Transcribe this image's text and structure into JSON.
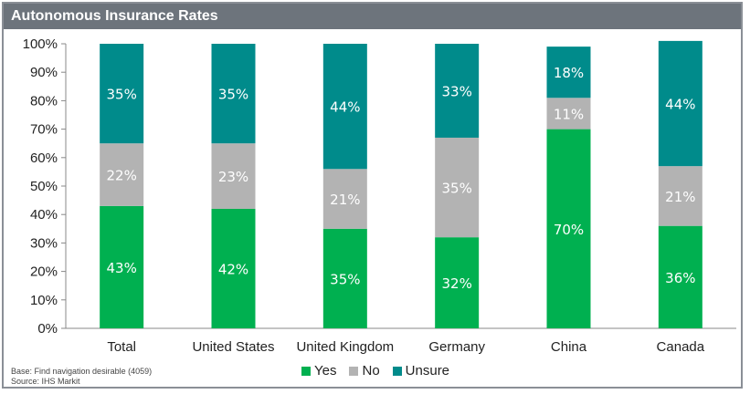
{
  "title": "Autonomous Insurance Rates",
  "footnotes": {
    "base": "Base: Find navigation desirable (4059)",
    "source": "Source: IHS Markit"
  },
  "colors": {
    "yes": "#00b050",
    "no": "#b3b3b3",
    "unsure": "#008b8b",
    "titlebar": "#6d747c"
  },
  "chart_data": {
    "type": "bar",
    "stacked": true,
    "categories": [
      "Total",
      "United States",
      "United Kingdom",
      "Germany",
      "China",
      "Canada"
    ],
    "series": [
      {
        "name": "Yes",
        "values": [
          43,
          42,
          35,
          32,
          70,
          36
        ]
      },
      {
        "name": "No",
        "values": [
          22,
          23,
          21,
          35,
          11,
          21
        ]
      },
      {
        "name": "Unsure",
        "values": [
          35,
          35,
          44,
          33,
          18,
          44
        ]
      }
    ],
    "ylim": [
      0,
      100
    ],
    "yticks": [
      "0%",
      "10%",
      "20%",
      "30%",
      "40%",
      "50%",
      "60%",
      "70%",
      "80%",
      "90%",
      "100%"
    ],
    "legend_position": "bottom",
    "grid": false
  }
}
